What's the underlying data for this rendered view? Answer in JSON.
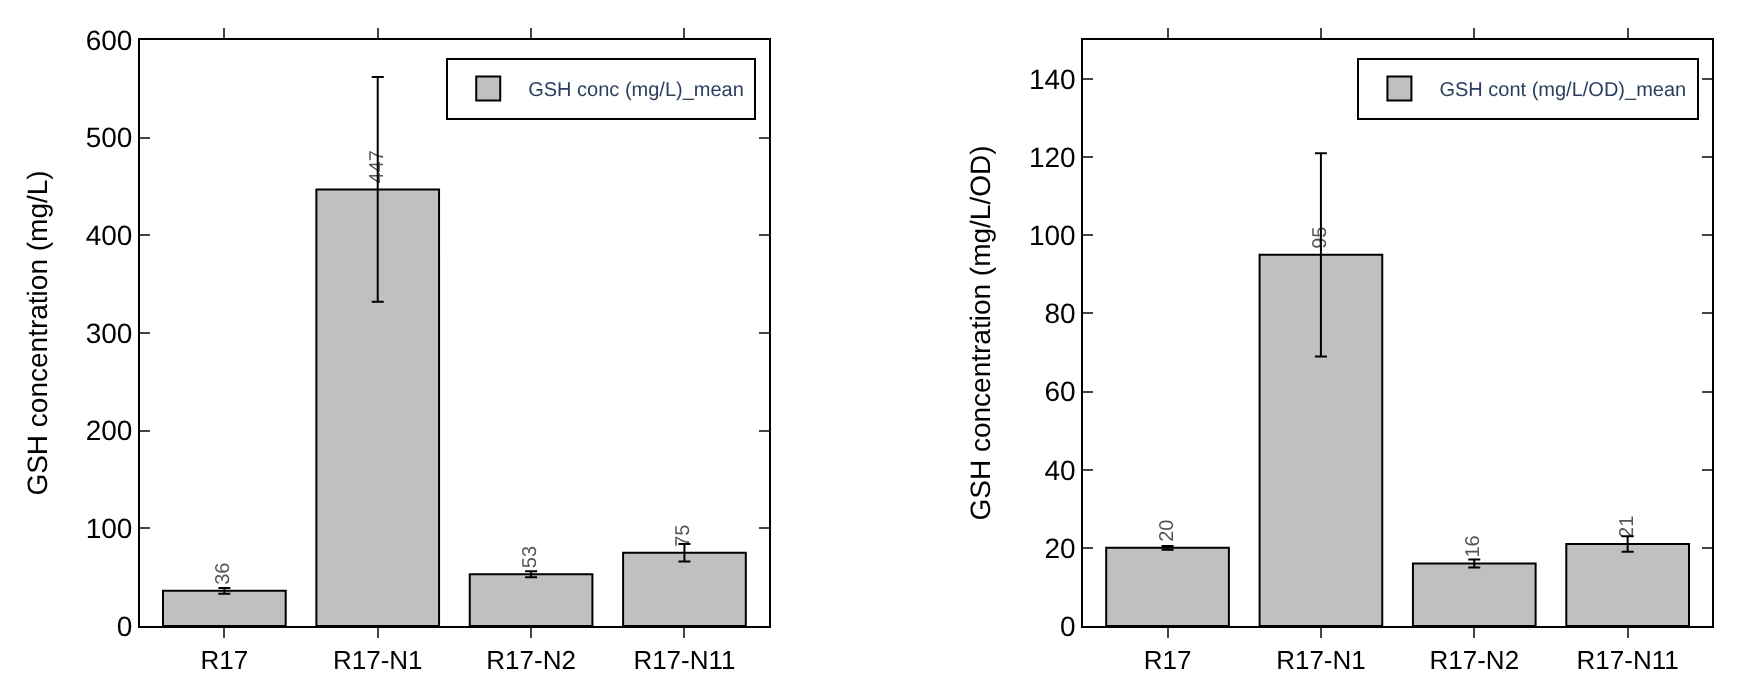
{
  "chart_data": [
    {
      "type": "bar",
      "ylabel": "GSH concentration (mg/L)",
      "categories": [
        "R17",
        "R17-N1",
        "R17-N2",
        "R17-N11"
      ],
      "series": [
        {
          "name": "GSH conc (mg/L)_mean",
          "color": "#c0c0c0",
          "values": [
            36,
            447,
            53,
            75
          ],
          "errors": [
            3,
            115,
            3,
            9
          ]
        }
      ],
      "ylim": [
        0,
        600
      ],
      "yticks": [
        0,
        100,
        200,
        300,
        400,
        500,
        600
      ],
      "data_labels": true,
      "legend": "top right"
    },
    {
      "type": "bar",
      "ylabel": "GSH concentration (mg/L/OD)",
      "categories": [
        "R17",
        "R17-N1",
        "R17-N2",
        "R17-N11"
      ],
      "series": [
        {
          "name": "GSH cont (mg/L/OD)_mean",
          "color": "#c0c0c0",
          "values": [
            20,
            95,
            16,
            21
          ],
          "errors": [
            0.5,
            26,
            1,
            2
          ]
        }
      ],
      "ylim": [
        0,
        150
      ],
      "yticks": [
        0,
        20,
        40,
        60,
        80,
        100,
        120,
        140
      ],
      "data_labels": true,
      "legend": "top right"
    }
  ]
}
